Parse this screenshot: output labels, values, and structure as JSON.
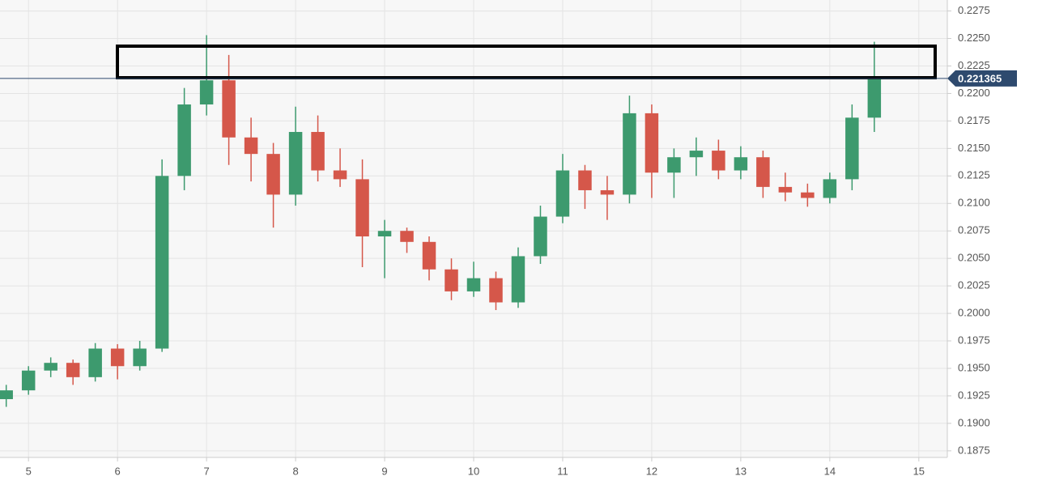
{
  "chart_data": {
    "type": "candlestick",
    "x": [
      4.75,
      5.0,
      5.25,
      5.5,
      5.75,
      6.0,
      6.25,
      6.5,
      6.75,
      7.0,
      7.25,
      7.5,
      7.75,
      8.0,
      8.25,
      8.5,
      8.75,
      9.0,
      9.25,
      9.5,
      9.75,
      10.0,
      10.25,
      10.5,
      10.75,
      11.0,
      11.25,
      11.5,
      11.75,
      12.0,
      12.25,
      12.5,
      12.75,
      13.0,
      13.25,
      13.5,
      13.75,
      14.0,
      14.25,
      14.5
    ],
    "open": [
      0.1922,
      0.193,
      0.1948,
      0.1955,
      0.1942,
      0.1968,
      0.1952,
      0.1968,
      0.2125,
      0.219,
      0.2212,
      0.216,
      0.2145,
      0.2108,
      0.2165,
      0.213,
      0.2122,
      0.207,
      0.2075,
      0.2065,
      0.204,
      0.202,
      0.2032,
      0.201,
      0.2052,
      0.2088,
      0.213,
      0.2112,
      0.2108,
      0.2182,
      0.2128,
      0.2142,
      0.2148,
      0.213,
      0.2142,
      0.2115,
      0.211,
      0.2105,
      0.2122,
      0.2178
    ],
    "high": [
      0.1935,
      0.1952,
      0.196,
      0.1958,
      0.1973,
      0.1972,
      0.1975,
      0.214,
      0.2205,
      0.2253,
      0.2235,
      0.2178,
      0.2155,
      0.2188,
      0.218,
      0.215,
      0.214,
      0.2085,
      0.2078,
      0.207,
      0.205,
      0.2047,
      0.2038,
      0.206,
      0.2098,
      0.2145,
      0.2135,
      0.2125,
      0.2198,
      0.219,
      0.215,
      0.216,
      0.2158,
      0.2152,
      0.2148,
      0.2128,
      0.2118,
      0.2128,
      0.219,
      0.2247
    ],
    "low": [
      0.1915,
      0.1926,
      0.1942,
      0.1935,
      0.1938,
      0.194,
      0.1948,
      0.1965,
      0.2112,
      0.218,
      0.2135,
      0.212,
      0.2078,
      0.2098,
      0.212,
      0.2115,
      0.2042,
      0.2032,
      0.2055,
      0.203,
      0.2012,
      0.2015,
      0.2003,
      0.2005,
      0.2045,
      0.2082,
      0.2095,
      0.2085,
      0.21,
      0.2105,
      0.2105,
      0.2125,
      0.2122,
      0.2122,
      0.2105,
      0.2102,
      0.2097,
      0.21,
      0.2112,
      0.2165
    ],
    "close": [
      0.193,
      0.1948,
      0.1955,
      0.1942,
      0.1968,
      0.1952,
      0.1968,
      0.2125,
      0.219,
      0.2212,
      0.216,
      0.2145,
      0.2108,
      0.2165,
      0.213,
      0.2122,
      0.207,
      0.2075,
      0.2065,
      0.204,
      0.202,
      0.2032,
      0.201,
      0.2052,
      0.2088,
      0.213,
      0.2112,
      0.2108,
      0.2182,
      0.2128,
      0.2142,
      0.2148,
      0.213,
      0.2142,
      0.2115,
      0.211,
      0.2105,
      0.2122,
      0.2178,
      0.221365
    ],
    "up_color": "#3d9a6e",
    "down_color": "#d5574a",
    "last_price": 0.221365,
    "last_price_color": "#2e4a6e",
    "xlim": [
      4.68,
      15.32
    ],
    "xticks": [
      5,
      6,
      7,
      8,
      9,
      10,
      11,
      12,
      13,
      14,
      15
    ],
    "ylim": [
      0.1869,
      0.2285
    ],
    "yticks": [
      0.1875,
      {
        "value": 0.19,
        "label": "0.1900"
      },
      0.1925,
      {
        "value": 0.195,
        "label": "0.1950"
      },
      0.1975,
      {
        "value": 0.2,
        "label": "0.2000"
      },
      0.2025,
      {
        "value": 0.205,
        "label": "0.2050"
      },
      0.2075,
      {
        "value": 0.21,
        "label": "0.2100"
      },
      0.2125,
      {
        "value": 0.215,
        "label": "0.2150"
      },
      0.2175,
      {
        "value": 0.22,
        "label": "0.2200"
      },
      0.2225,
      {
        "value": 0.225,
        "label": "0.2250"
      },
      0.2275
    ],
    "grid": true
  }
}
